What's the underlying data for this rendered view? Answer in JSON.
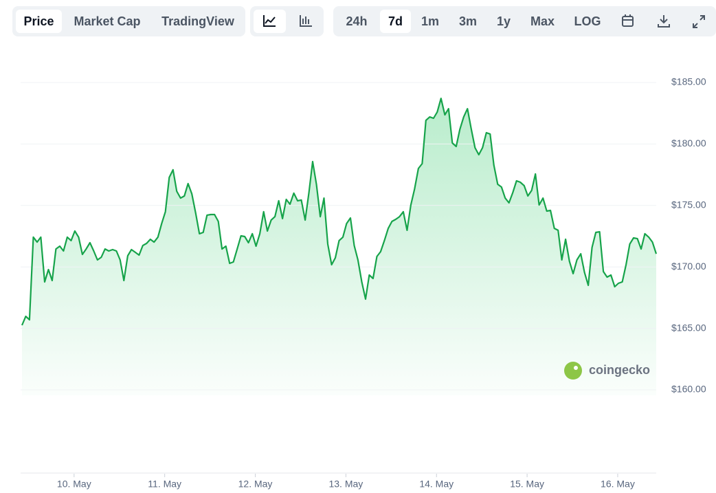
{
  "toolbar": {
    "views": [
      "Price",
      "Market Cap",
      "TradingView"
    ],
    "active_view": 0,
    "ranges": [
      "24h",
      "7d",
      "1m",
      "3m",
      "1y",
      "Max",
      "LOG"
    ],
    "active_range": 1
  },
  "watermark": "coingecko",
  "chart_data": {
    "type": "line",
    "x": [
      9.425,
      9.467,
      9.508,
      9.55,
      9.592,
      9.633,
      9.675,
      9.717,
      9.758,
      9.8,
      9.842,
      9.883,
      9.925,
      9.967,
      10.008,
      10.05,
      10.092,
      10.133,
      10.175,
      10.217,
      10.258,
      10.3,
      10.342,
      10.383,
      10.425,
      10.467,
      10.508,
      10.55,
      10.592,
      10.633,
      10.675,
      10.717,
      10.758,
      10.8,
      10.842,
      10.883,
      10.925,
      10.967,
      11.008,
      11.05,
      11.092,
      11.133,
      11.175,
      11.217,
      11.258,
      11.3,
      11.342,
      11.383,
      11.425,
      11.467,
      11.508,
      11.55,
      11.592,
      11.633,
      11.675,
      11.717,
      11.758,
      11.8,
      11.842,
      11.883,
      11.925,
      11.967,
      12.008,
      12.05,
      12.092,
      12.133,
      12.175,
      12.217,
      12.258,
      12.3,
      12.342,
      12.383,
      12.425,
      12.467,
      12.508,
      12.55,
      12.592,
      12.633,
      12.675,
      12.717,
      12.758,
      12.8,
      12.842,
      12.883,
      12.925,
      12.967,
      13.008,
      13.05,
      13.092,
      13.133,
      13.175,
      13.217,
      13.258,
      13.3,
      13.342,
      13.383,
      13.425,
      13.467,
      13.508,
      13.55,
      13.592,
      13.633,
      13.675,
      13.717,
      13.758,
      13.8,
      13.842,
      13.883,
      13.925,
      13.967,
      14.008,
      14.05,
      14.092,
      14.133,
      14.175,
      14.217,
      14.258,
      14.3,
      14.342,
      14.383,
      14.425,
      14.467,
      14.508,
      14.55,
      14.592,
      14.633,
      14.675,
      14.717,
      14.758,
      14.8,
      14.842,
      14.883,
      14.925,
      14.967,
      15.008,
      15.05,
      15.092,
      15.133,
      15.175,
      15.217,
      15.258,
      15.3,
      15.342,
      15.383,
      15.425,
      15.467,
      15.508,
      15.55,
      15.592,
      15.633,
      15.675,
      15.717,
      15.758,
      15.8,
      15.842,
      15.883,
      15.925,
      15.967,
      16.008,
      16.05,
      16.092,
      16.133,
      16.175,
      16.217,
      16.258,
      16.3,
      16.342,
      16.383,
      16.425
    ],
    "series": [
      {
        "color": "#16a34a",
        "values": [
          165.26,
          165.98,
          165.7,
          172.42,
          172.02,
          172.42,
          168.78,
          169.79,
          168.89,
          171.46,
          171.69,
          171.3,
          172.42,
          172.14,
          172.92,
          172.42,
          171.02,
          171.46,
          171.97,
          171.3,
          170.57,
          170.79,
          171.46,
          171.3,
          171.41,
          171.3,
          170.57,
          168.89,
          170.91,
          171.41,
          171.19,
          170.96,
          171.74,
          171.91,
          172.25,
          172.02,
          172.42,
          173.53,
          174.49,
          177.28,
          177.9,
          176.16,
          175.6,
          175.77,
          176.78,
          175.94,
          174.37,
          172.7,
          172.81,
          174.21,
          174.26,
          174.26,
          173.7,
          171.46,
          171.69,
          170.29,
          170.4,
          171.46,
          172.53,
          172.47,
          171.97,
          172.7,
          171.69,
          172.7,
          174.49,
          172.92,
          173.81,
          174.09,
          175.38,
          173.93,
          175.49,
          175.1,
          176.0,
          175.38,
          175.44,
          173.81,
          176.05,
          178.57,
          176.72,
          174.09,
          175.6,
          171.86,
          170.18,
          170.74,
          172.14,
          172.42,
          173.53,
          173.98,
          171.74,
          170.57,
          168.78,
          167.38,
          169.34,
          169.06,
          170.85,
          171.24,
          172.14,
          173.14,
          173.7,
          173.87,
          174.09,
          174.49,
          172.98,
          175.04,
          176.33,
          178.01,
          178.4,
          181.92,
          182.2,
          182.09,
          182.6,
          183.71,
          182.37,
          182.87,
          180.08,
          179.8,
          181.2,
          182.2,
          182.87,
          181.25,
          179.69,
          179.13,
          179.69,
          180.92,
          180.81,
          178.29,
          176.72,
          176.5,
          175.6,
          175.21,
          176.05,
          177.0,
          176.89,
          176.61,
          175.77,
          176.22,
          177.56,
          175.04,
          175.6,
          174.54,
          174.6,
          173.14,
          172.98,
          170.57,
          172.25,
          170.46,
          169.45,
          170.57,
          171.07,
          169.56,
          168.5,
          171.58,
          172.81,
          172.86,
          169.62,
          169.17,
          169.34,
          168.39,
          168.67,
          168.78,
          170.18,
          171.86,
          172.36,
          172.3,
          171.46,
          172.7,
          172.42,
          172.02,
          171.07
        ]
      }
    ],
    "xlim": [
      9.425,
      16.425
    ],
    "xticks": [
      {
        "value": 10,
        "label": "10. May"
      },
      {
        "value": 11,
        "label": "11. May"
      },
      {
        "value": 12,
        "label": "12. May"
      },
      {
        "value": 13,
        "label": "13. May"
      },
      {
        "value": 14,
        "label": "14. May"
      },
      {
        "value": 15,
        "label": "15. May"
      },
      {
        "value": 16,
        "label": "16. May"
      }
    ],
    "ylim": [
      160,
      185
    ],
    "yticks": [
      {
        "value": 160,
        "label": "$160.00"
      },
      {
        "value": 165,
        "label": "$165.00"
      },
      {
        "value": 170,
        "label": "$170.00"
      },
      {
        "value": 175,
        "label": "$175.00"
      },
      {
        "value": 180,
        "label": "$180.00"
      },
      {
        "value": 185,
        "label": "$185.00"
      }
    ],
    "grid": true
  }
}
